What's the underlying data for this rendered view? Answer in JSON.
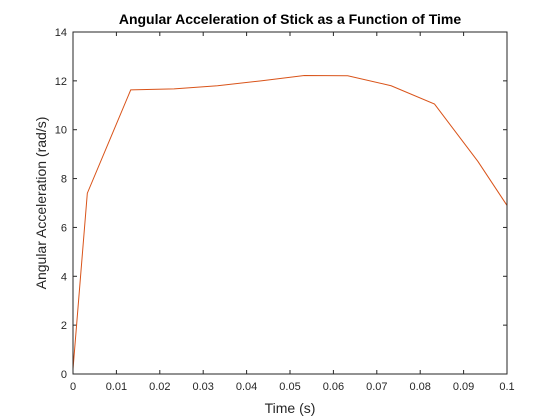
{
  "chart_data": {
    "type": "line",
    "title": "Angular Acceleration of Stick as a Function of Time",
    "xlabel": "Time (s)",
    "ylabel": "Angular Acceleration (rad/s)",
    "xlim": [
      0,
      0.1
    ],
    "ylim": [
      0,
      14
    ],
    "xticks": [
      0,
      0.01,
      0.02,
      0.03,
      0.04,
      0.05,
      0.06,
      0.07,
      0.08,
      0.09,
      0.1
    ],
    "xtick_labels": [
      "0",
      "0.01",
      "0.02",
      "0.03",
      "0.04",
      "0.05",
      "0.06",
      "0.07",
      "0.08",
      "0.09",
      "0.1"
    ],
    "yticks": [
      0,
      2,
      4,
      6,
      8,
      10,
      12,
      14
    ],
    "ytick_labels": [
      "0",
      "2",
      "4",
      "6",
      "8",
      "10",
      "12",
      "14"
    ],
    "grid": false,
    "box": true,
    "series": [
      {
        "color": "#d95319",
        "x": [
          0,
          0.0033,
          0.0133,
          0.0233,
          0.0333,
          0.0433,
          0.0533,
          0.0633,
          0.0733,
          0.0833,
          0.0933,
          0.1
        ],
        "y": [
          0.2,
          7.4,
          11.63,
          11.67,
          11.8,
          12.0,
          12.22,
          12.21,
          11.8,
          11.05,
          8.7,
          6.9
        ]
      }
    ]
  }
}
